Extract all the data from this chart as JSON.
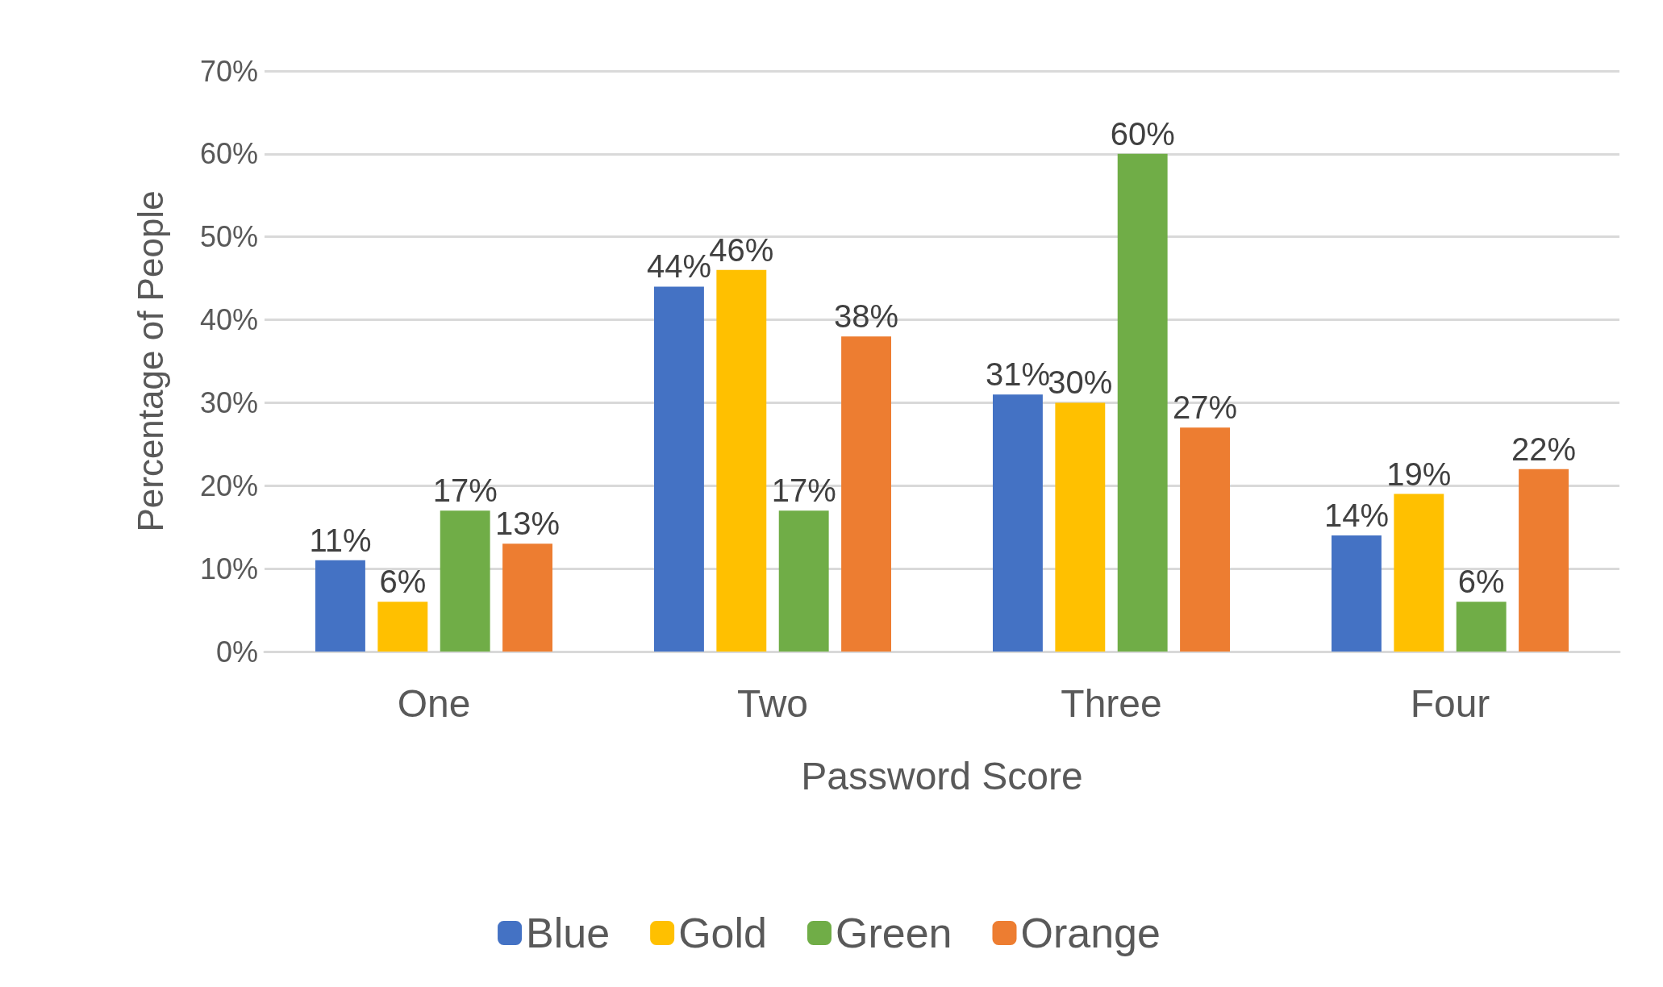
{
  "chart_data": {
    "type": "bar",
    "xlabel": "Password Score",
    "ylabel": "Percentage of People",
    "categories": [
      "One",
      "Two",
      "Three",
      "Four"
    ],
    "series": [
      {
        "name": "Blue",
        "color": "#4472c4",
        "values": [
          11,
          44,
          31,
          14
        ],
        "value_labels": [
          "11%",
          "44%",
          "31%",
          "14%"
        ]
      },
      {
        "name": "Gold",
        "color": "#ffc000",
        "values": [
          6,
          46,
          30,
          19
        ],
        "value_labels": [
          "6%",
          "46%",
          "30%",
          "19%"
        ]
      },
      {
        "name": "Green",
        "color": "#70ad47",
        "values": [
          17,
          17,
          60,
          6
        ],
        "value_labels": [
          "17%",
          "17%",
          "60%",
          "6%"
        ]
      },
      {
        "name": "Orange",
        "color": "#ed7d31",
        "values": [
          13,
          38,
          27,
          22
        ],
        "value_labels": [
          "13%",
          "38%",
          "27%",
          "22%"
        ]
      }
    ],
    "ylim": [
      0,
      70
    ],
    "yticks": [
      {
        "value": 0,
        "label": "0%"
      },
      {
        "value": 10,
        "label": "10%"
      },
      {
        "value": 20,
        "label": "20%"
      },
      {
        "value": 30,
        "label": "30%"
      },
      {
        "value": 40,
        "label": "40%"
      },
      {
        "value": 50,
        "label": "50%"
      },
      {
        "value": 60,
        "label": "60%"
      },
      {
        "value": 70,
        "label": "70%"
      }
    ],
    "grid": "y",
    "legend": "bottom"
  }
}
